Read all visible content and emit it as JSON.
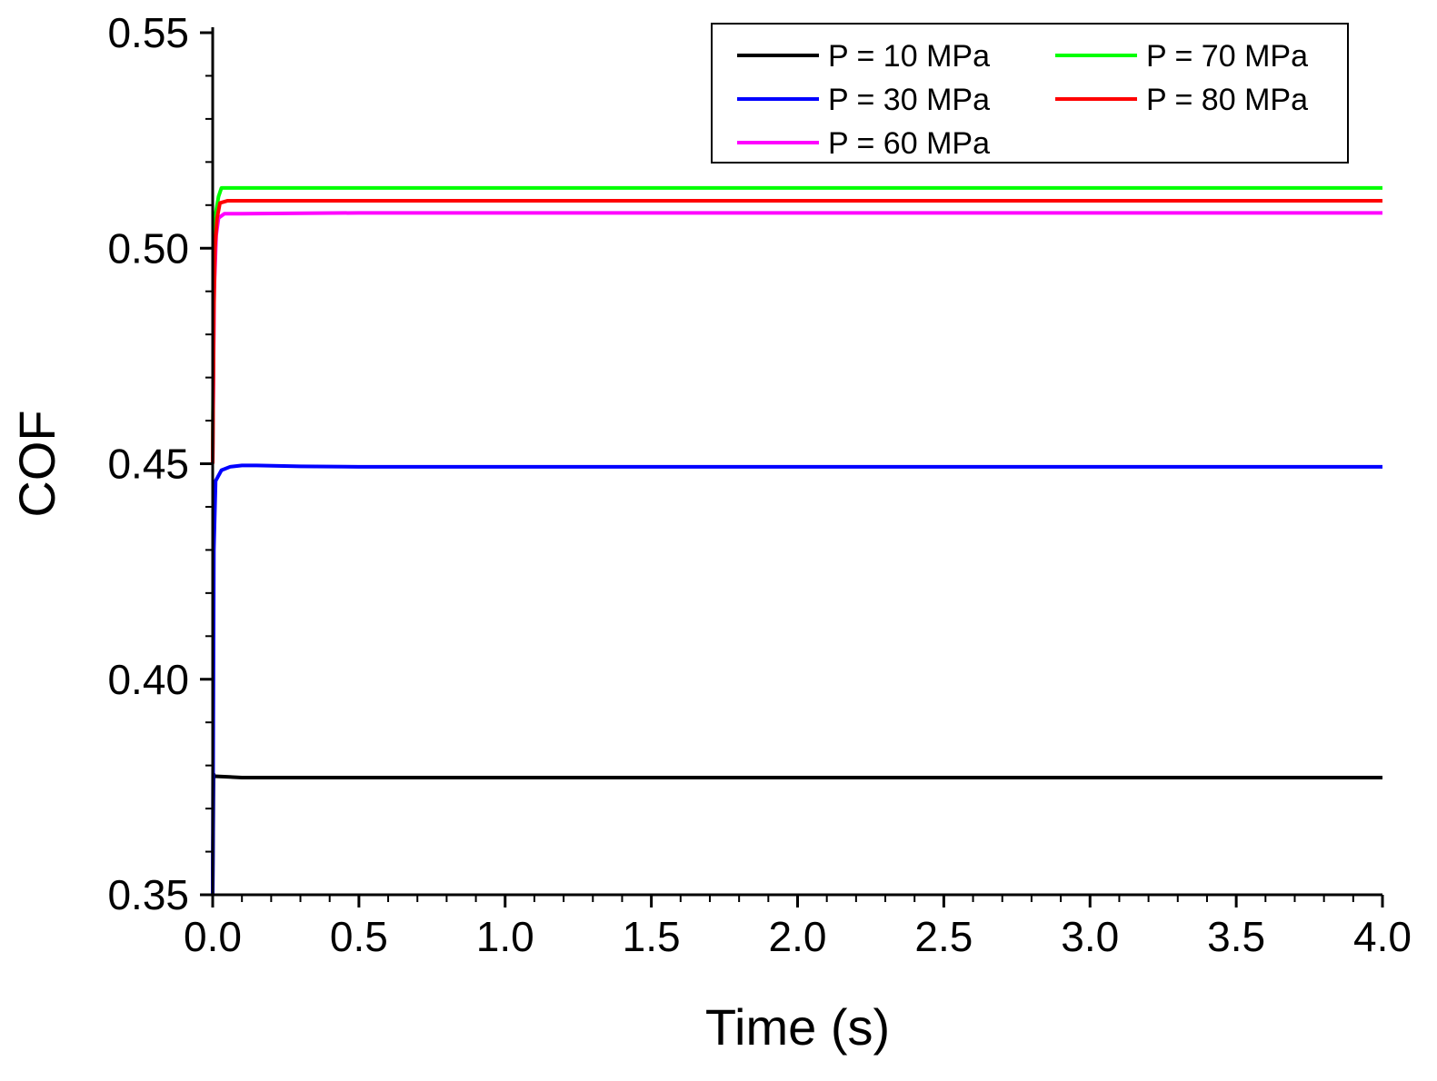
{
  "chart_data": {
    "type": "line",
    "title": "",
    "xlabel": "Time (s)",
    "ylabel": "COF",
    "xlim": [
      0.0,
      4.0
    ],
    "ylim": [
      0.35,
      0.55
    ],
    "xticks": [
      0.0,
      0.5,
      1.0,
      1.5,
      2.0,
      2.5,
      3.0,
      3.5,
      4.0
    ],
    "xtick_labels": [
      "0.0",
      "0.5",
      "1.0",
      "1.5",
      "2.0",
      "2.5",
      "3.0",
      "3.5",
      "4.0"
    ],
    "yticks": [
      0.35,
      0.4,
      0.45,
      0.5,
      0.55
    ],
    "ytick_labels": [
      "0.35",
      "0.40",
      "0.45",
      "0.50",
      "0.55"
    ],
    "grid": false,
    "legend_position": "top-right",
    "series": [
      {
        "name": "P = 10 MPa",
        "color": "#000000",
        "x": [
          0.0,
          0.003,
          0.006,
          0.1,
          0.5,
          1.0,
          2.0,
          3.0,
          4.0
        ],
        "y": [
          0.35,
          0.378,
          0.3775,
          0.3772,
          0.3772,
          0.3772,
          0.3772,
          0.3772,
          0.3772
        ]
      },
      {
        "name": "P = 30 MPa",
        "color": "#0000ff",
        "x": [
          0.0,
          0.004,
          0.01,
          0.03,
          0.06,
          0.1,
          0.15,
          0.3,
          0.5,
          1.0,
          2.0,
          3.0,
          4.0
        ],
        "y": [
          0.35,
          0.43,
          0.446,
          0.4485,
          0.4493,
          0.4496,
          0.4496,
          0.4494,
          0.4493,
          0.4493,
          0.4493,
          0.4493,
          0.4493
        ]
      },
      {
        "name": "P = 60 MPa",
        "color": "#ff00ff",
        "x": [
          0.0,
          0.005,
          0.012,
          0.02,
          0.04,
          0.1,
          0.5,
          1.0,
          2.0,
          3.0,
          4.0
        ],
        "y": [
          0.45,
          0.49,
          0.503,
          0.507,
          0.508,
          0.508,
          0.5082,
          0.5082,
          0.5082,
          0.5082,
          0.5082
        ]
      },
      {
        "name": "P = 70 MPa",
        "color": "#00ff00",
        "x": [
          0.0,
          0.004,
          0.01,
          0.02,
          0.03,
          0.1,
          0.5,
          1.0,
          2.0,
          3.0,
          4.0
        ],
        "y": [
          0.45,
          0.495,
          0.508,
          0.512,
          0.514,
          0.514,
          0.514,
          0.514,
          0.514,
          0.514,
          0.514
        ]
      },
      {
        "name": "P = 80 MPa",
        "color": "#ff0000",
        "x": [
          0.0,
          0.004,
          0.008,
          0.015,
          0.025,
          0.05,
          0.1,
          0.5,
          1.0,
          2.0,
          3.0,
          4.0
        ],
        "y": [
          0.45,
          0.485,
          0.5,
          0.507,
          0.5105,
          0.511,
          0.511,
          0.511,
          0.511,
          0.511,
          0.511,
          0.511
        ]
      }
    ],
    "legend_order": [
      "P = 10 MPa",
      "P = 70 MPa",
      "P = 30 MPa",
      "P = 80 MPa",
      "P = 60 MPa"
    ]
  }
}
